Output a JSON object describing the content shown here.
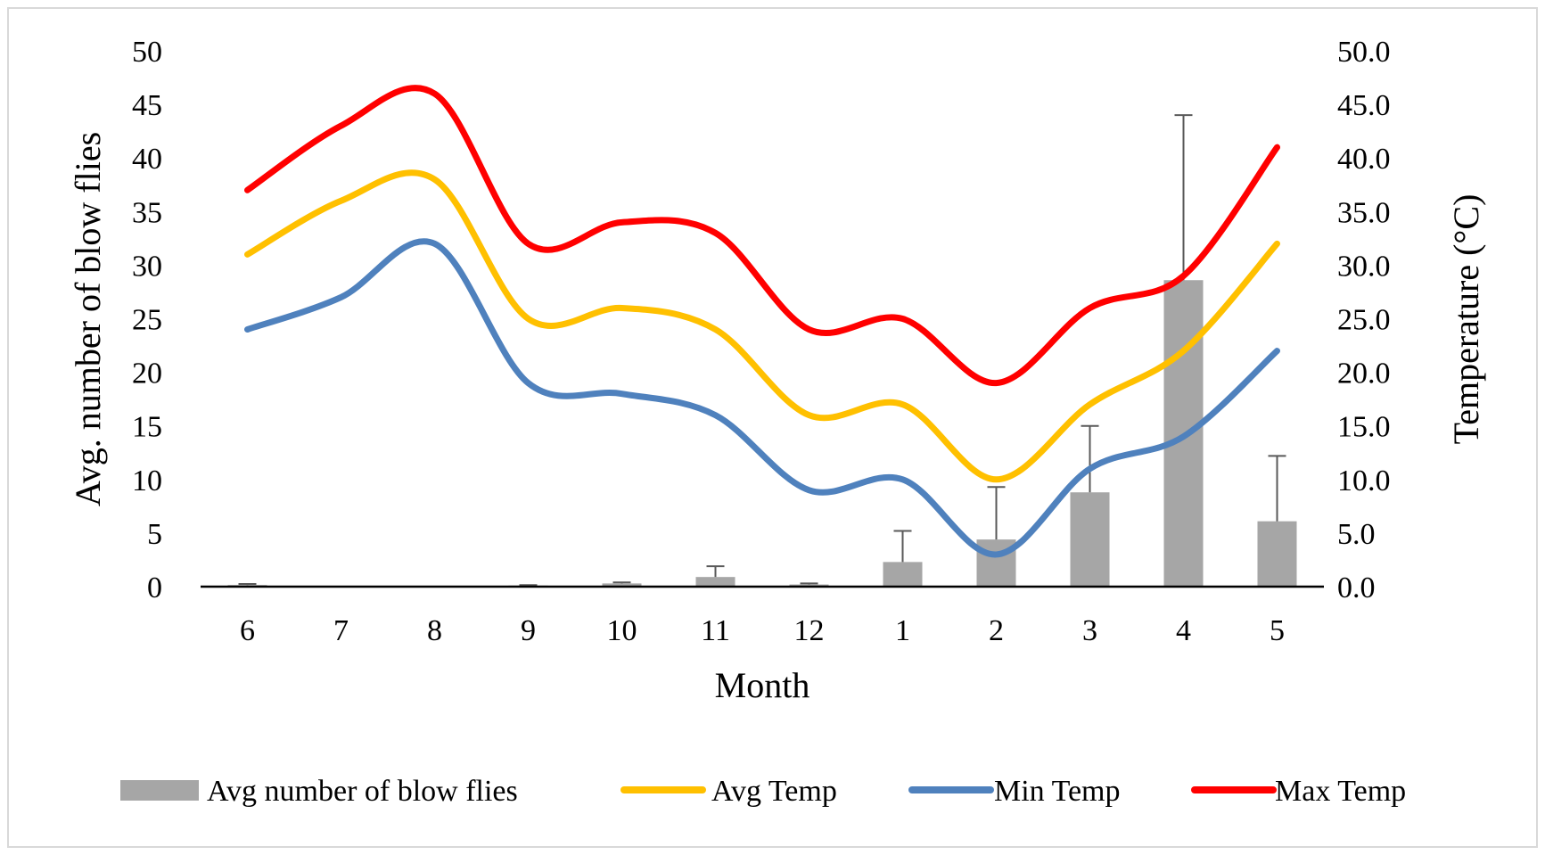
{
  "chart_data": {
    "type": "bar+line",
    "title": "",
    "xlabel": "Month",
    "ylabel": "Avg. number of blow flies",
    "y2label": "Temperature (°C)",
    "categories": [
      "6",
      "7",
      "8",
      "9",
      "10",
      "11",
      "12",
      "1",
      "2",
      "3",
      "4",
      "5"
    ],
    "ylim": [
      0,
      50
    ],
    "y2lim": [
      0,
      50
    ],
    "yticks": [
      "0",
      "5",
      "10",
      "15",
      "20",
      "25",
      "30",
      "35",
      "40",
      "45",
      "50"
    ],
    "y2ticks": [
      "0.0",
      "5.0",
      "10.0",
      "15.0",
      "20.0",
      "25.0",
      "30.0",
      "35.0",
      "40.0",
      "45.0",
      "50.0"
    ],
    "bars": {
      "name": "Avg number of blow flies",
      "color": "#a6a6a6",
      "values": [
        0.15,
        0,
        0,
        0.1,
        0.3,
        0.9,
        0.2,
        2.3,
        4.4,
        8.8,
        28.6,
        6.1
      ],
      "error": [
        0.1,
        0,
        0,
        0.05,
        0.1,
        1.0,
        0.1,
        2.9,
        4.9,
        6.2,
        15.4,
        6.1
      ]
    },
    "series": [
      {
        "name": "Avg Temp",
        "color": "#ffc000",
        "values": [
          31,
          36,
          38,
          25,
          26,
          24,
          16,
          17,
          10,
          17,
          22,
          32
        ]
      },
      {
        "name": "Min Temp",
        "color": "#4f81bd",
        "values": [
          24,
          27,
          32,
          19,
          18,
          16,
          9,
          10,
          3,
          11,
          14,
          22
        ]
      },
      {
        "name": "Max Temp",
        "color": "#ff0000",
        "values": [
          37,
          43,
          46,
          32,
          34,
          33,
          24,
          25,
          19,
          26,
          29,
          41
        ]
      }
    ],
    "legend_position": "bottom"
  }
}
